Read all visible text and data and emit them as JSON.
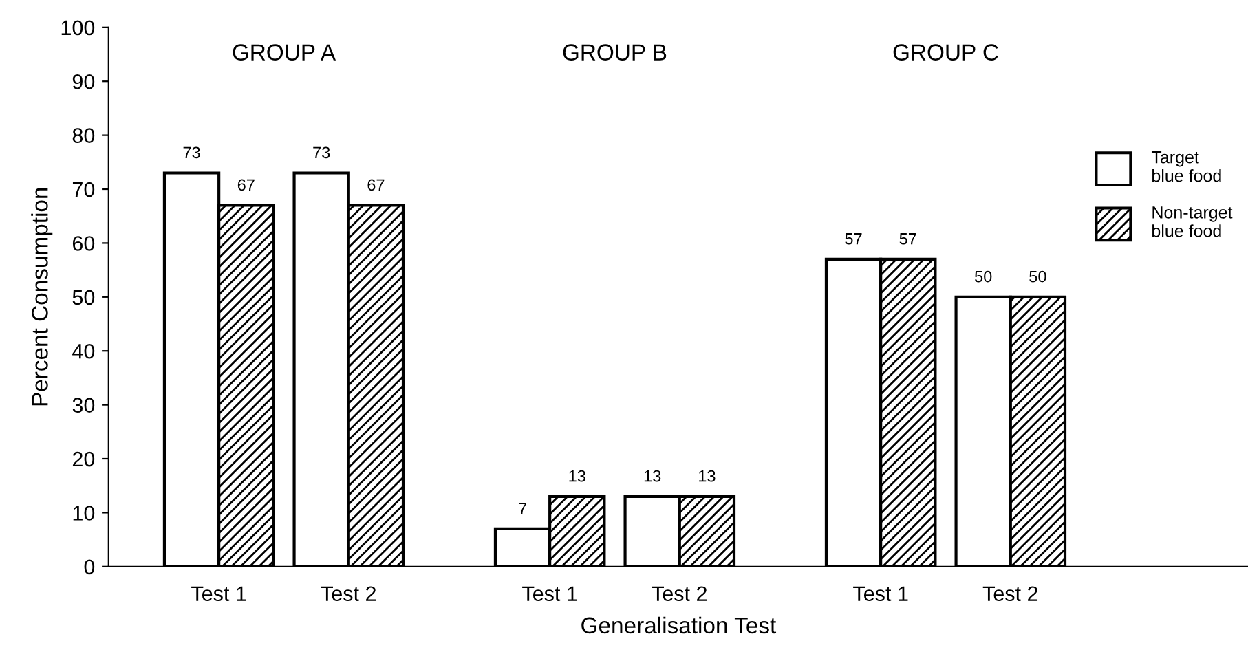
{
  "chart_data": {
    "type": "bar",
    "categories": [
      "Test 1",
      "Test 2",
      "Test 1",
      "Test 2",
      "Test 1",
      "Test 2"
    ],
    "series": [
      {
        "name": "Target\nblue food",
        "color": "#ffffff",
        "values": [
          73,
          73,
          7,
          13,
          57,
          50
        ]
      },
      {
        "name": "Non-target\nblue food",
        "color": "#000000",
        "values": [
          67,
          67,
          13,
          13,
          57,
          50
        ]
      }
    ],
    "annotations": [
      "GROUP A",
      "GROUP B",
      "GROUP C"
    ],
    "xlabel": "Generalisation Test",
    "ylabel": "Percent Consumption",
    "ylim": [
      0,
      100
    ],
    "yticks": [
      0,
      10,
      20,
      30,
      40,
      50,
      60,
      70,
      80,
      90,
      100
    ],
    "data_labels": true,
    "legend": "top right",
    "grid": false
  }
}
